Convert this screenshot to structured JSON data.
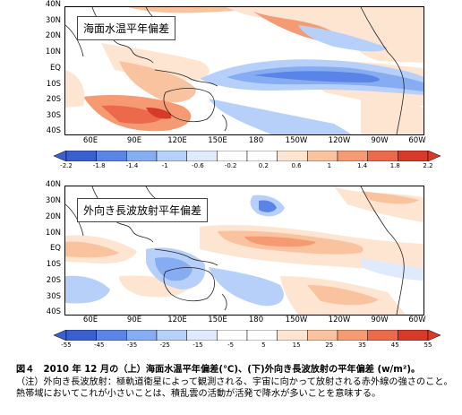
{
  "top_map": {
    "title": "海面水温平年偏差",
    "lat_labels": [
      "40N",
      "30N",
      "20N",
      "10N",
      "EQ",
      "10S",
      "20S",
      "30S",
      "40S"
    ],
    "lon_labels": [
      "60E",
      "90E",
      "120E",
      "150E",
      "180",
      "150W",
      "120W",
      "90W",
      "60W"
    ],
    "colorbar_labels": [
      "-2.2",
      "-1.8",
      "-1.4",
      "-1",
      "-0.6",
      "-0.2",
      "0.2",
      "0.6",
      "1",
      "1.4",
      "1.8",
      "2.2"
    ],
    "colors": [
      "#3a5fd0",
      "#5a84e6",
      "#86acf2",
      "#b6d0fa",
      "#dfeafd",
      "#ffffff",
      "#ffffff",
      "#fde5d2",
      "#f9c3a0",
      "#f59a73",
      "#ec6a4c",
      "#d83a2a"
    ]
  },
  "bottom_map": {
    "title": "外向き長波放射平年偏差",
    "lat_labels": [
      "40N",
      "30N",
      "20N",
      "10N",
      "EQ",
      "10S",
      "20S",
      "30S",
      "40S"
    ],
    "lon_labels": [
      "60E",
      "90E",
      "120E",
      "150E",
      "180",
      "150W",
      "120W",
      "90W",
      "60W"
    ],
    "colorbar_labels": [
      "-55",
      "-45",
      "-35",
      "-25",
      "-15",
      "-5",
      "5",
      "15",
      "25",
      "35",
      "45",
      "55"
    ],
    "colors": [
      "#3a5fd0",
      "#5a84e6",
      "#86acf2",
      "#b6d0fa",
      "#dfeafd",
      "#ffffff",
      "#ffffff",
      "#fde5d2",
      "#f9c3a0",
      "#f59a73",
      "#ec6a4c",
      "#d83a2a"
    ]
  },
  "caption": {
    "head": "図４　2010 年 12 月の（上）海面水温平年偏差(℃)、(下)外向き長波放射の平年偏差 (w/m²)。",
    "note": "（注）外向き長波放射：極軌道衛星によって観測される、宇宙に向かって放射される赤外線の強さのこと。熱帯域においてこれが小さいことは、積乱雲の活動が活発で降水が多いことを意味する。"
  }
}
